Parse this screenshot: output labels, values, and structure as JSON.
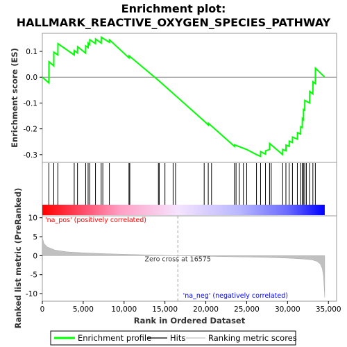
{
  "chart_data": {
    "type": "line",
    "title_line1": "Enrichment plot:",
    "title_line2": "HALLMARK_REACTIVE_OXYGEN_SPECIES_PATHWAY",
    "es_panel": {
      "ylabel": "Enrichment score (ES)",
      "ylim": [
        -0.33,
        0.17
      ],
      "yticks": [
        -0.3,
        -0.2,
        -0.1,
        0.0,
        0.1
      ],
      "ytick_labels": [
        "-0.3",
        "-0.2",
        "-0.1",
        "0.0",
        "0.1"
      ],
      "color": "#00ff00",
      "points": [
        [
          0,
          0
        ],
        [
          800,
          -0.022
        ],
        [
          810,
          0.06
        ],
        [
          1400,
          0.044
        ],
        [
          1410,
          0.097
        ],
        [
          1900,
          0.086
        ],
        [
          1910,
          0.13
        ],
        [
          3900,
          0.086
        ],
        [
          3910,
          0.103
        ],
        [
          4300,
          0.094
        ],
        [
          4310,
          0.118
        ],
        [
          5300,
          0.093
        ],
        [
          5310,
          0.121
        ],
        [
          5600,
          0.115
        ],
        [
          5610,
          0.132
        ],
        [
          5800,
          0.126
        ],
        [
          5810,
          0.145
        ],
        [
          6500,
          0.13
        ],
        [
          6510,
          0.148
        ],
        [
          7200,
          0.132
        ],
        [
          7210,
          0.155
        ],
        [
          8200,
          0.135
        ],
        [
          8210,
          0.145
        ],
        [
          10600,
          0.075
        ],
        [
          10610,
          0.083
        ],
        [
          14200,
          -0.012
        ],
        [
          19800,
          -0.17
        ],
        [
          20300,
          -0.185
        ],
        [
          20310,
          -0.178
        ],
        [
          23500,
          -0.268
        ],
        [
          23510,
          -0.262
        ],
        [
          25000,
          -0.28
        ],
        [
          26200,
          -0.3
        ],
        [
          26700,
          -0.307
        ],
        [
          26710,
          -0.288
        ],
        [
          27300,
          -0.298
        ],
        [
          27310,
          -0.285
        ],
        [
          27800,
          -0.28
        ],
        [
          27810,
          -0.257
        ],
        [
          29400,
          -0.3
        ],
        [
          29410,
          -0.28
        ],
        [
          29800,
          -0.285
        ],
        [
          29810,
          -0.263
        ],
        [
          30200,
          -0.268
        ],
        [
          30210,
          -0.248
        ],
        [
          30600,
          -0.253
        ],
        [
          30610,
          -0.232
        ],
        [
          31200,
          -0.24
        ],
        [
          31210,
          -0.215
        ],
        [
          31600,
          -0.22
        ],
        [
          31610,
          -0.192
        ],
        [
          31800,
          -0.195
        ],
        [
          31810,
          -0.16
        ],
        [
          31950,
          -0.165
        ],
        [
          31960,
          -0.125
        ],
        [
          32100,
          -0.128
        ],
        [
          32110,
          -0.09
        ],
        [
          32700,
          -0.1
        ],
        [
          32710,
          -0.055
        ],
        [
          33100,
          -0.065
        ],
        [
          33110,
          -0.018
        ],
        [
          33400,
          -0.025
        ],
        [
          33410,
          0.035
        ],
        [
          34550,
          0
        ]
      ]
    },
    "hits_panel": {
      "hit_positions": [
        800,
        1400,
        1900,
        3900,
        4300,
        5300,
        5600,
        5800,
        6500,
        7200,
        7400,
        8200,
        10600,
        10700,
        14200,
        14300,
        15000,
        16000,
        16300,
        19800,
        20300,
        20700,
        23500,
        23700,
        24100,
        24600,
        25000,
        26200,
        26700,
        27300,
        27800,
        28000,
        29400,
        29800,
        30200,
        30600,
        31200,
        31600,
        31800,
        31950,
        32100,
        32300,
        32700,
        33100,
        33400
      ],
      "color_bar_stops": [
        {
          "pos": 0,
          "color": "#ff0000"
        },
        {
          "pos": 5000,
          "color": "#ff4d6a"
        },
        {
          "pos": 9500,
          "color": "#ff9fc4"
        },
        {
          "pos": 16575,
          "color": "#f5e3ff"
        },
        {
          "pos": 24000,
          "color": "#b9b8ff"
        },
        {
          "pos": 30000,
          "color": "#6a6aff"
        },
        {
          "pos": 34550,
          "color": "#0000ff"
        }
      ]
    },
    "metric_panel": {
      "ylabel": "Ranked list metric (PreRanked)",
      "ylim": [
        -12,
        10.5
      ],
      "yticks": [
        10,
        5,
        0,
        -5,
        -10
      ],
      "ytick_labels": [
        "10",
        "5",
        "0",
        "-5",
        "-10"
      ],
      "fill_color": "#c0c0c0",
      "points": [
        [
          0,
          4.8
        ],
        [
          200,
          3.2
        ],
        [
          600,
          2.3
        ],
        [
          1500,
          1.5
        ],
        [
          3000,
          1.0
        ],
        [
          5000,
          0.75
        ],
        [
          8000,
          0.5
        ],
        [
          12000,
          0.25
        ],
        [
          16575,
          0
        ],
        [
          21000,
          -0.2
        ],
        [
          25000,
          -0.35
        ],
        [
          28000,
          -0.5
        ],
        [
          30500,
          -0.7
        ],
        [
          32000,
          -0.9
        ],
        [
          33000,
          -1.1
        ],
        [
          33600,
          -1.5
        ],
        [
          34000,
          -2.2
        ],
        [
          34250,
          -3.4
        ],
        [
          34400,
          -5.5
        ],
        [
          34550,
          -11.0
        ]
      ],
      "zero_cross_label": "Zero cross at 16575",
      "zero_cross": 16575,
      "pos_label": "'na_pos' (positively correlated)",
      "neg_label": "'na_neg' (negatively correlated)",
      "pos_color": "#ff0000",
      "neg_color": "#0000ff"
    },
    "xlabel": "Rank in Ordered Dataset",
    "xlim": [
      0,
      36000
    ],
    "xticks": [
      0,
      5000,
      10000,
      15000,
      20000,
      25000,
      30000,
      35000
    ],
    "xtick_labels": [
      "0",
      "5,000",
      "10,000",
      "15,000",
      "20,000",
      "25,000",
      "30,000",
      "35,000"
    ],
    "legend": [
      {
        "label": "Enrichment profile",
        "color": "#00ff00",
        "style": "thick"
      },
      {
        "label": "Hits",
        "color": "#000000",
        "style": "thin"
      },
      {
        "label": "Ranking metric scores",
        "color": "#c0c0c0",
        "style": "thin"
      }
    ]
  }
}
